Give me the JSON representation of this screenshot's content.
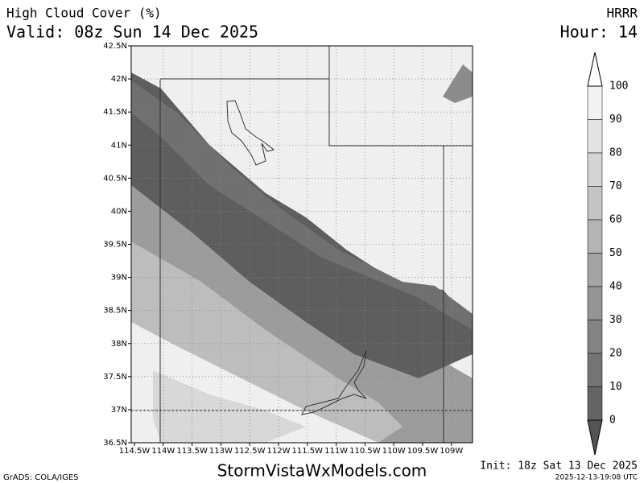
{
  "header": {
    "title": "High Cloud Cover (%)",
    "valid": "Valid: 08z Sun 14 Dec 2025",
    "model": "HRRR",
    "hour": "Hour: 14"
  },
  "map": {
    "lat_labels": [
      "42.5N",
      "42N",
      "41.5N",
      "41N",
      "40.5N",
      "40N",
      "39.5N",
      "39N",
      "38.5N",
      "38N",
      "37.5N",
      "37N",
      "36.5N"
    ],
    "lon_labels": [
      "114.5W",
      "114W",
      "113.5W",
      "113W",
      "112.5W",
      "112W",
      "111.5W",
      "111W",
      "110.5W",
      "110W",
      "109.5W",
      "109W"
    ]
  },
  "colorbar": {
    "ticks": [
      "100",
      "90",
      "80",
      "70",
      "60",
      "50",
      "40",
      "30",
      "20",
      "10",
      "0"
    ],
    "colors": [
      "#f2f2f2",
      "#e4e4e4",
      "#d4d4d4",
      "#c4c4c4",
      "#b4b4b4",
      "#a4a4a4",
      "#949494",
      "#848484",
      "#747474",
      "#646464"
    ]
  },
  "footer": {
    "grads": "GrADS: COLA/IGES",
    "site": "StormVistaWxModels.com",
    "init": "Init: 18z Sat 13 Dec 2025",
    "stamp": "2025-12-13-19:08 UTC"
  }
}
